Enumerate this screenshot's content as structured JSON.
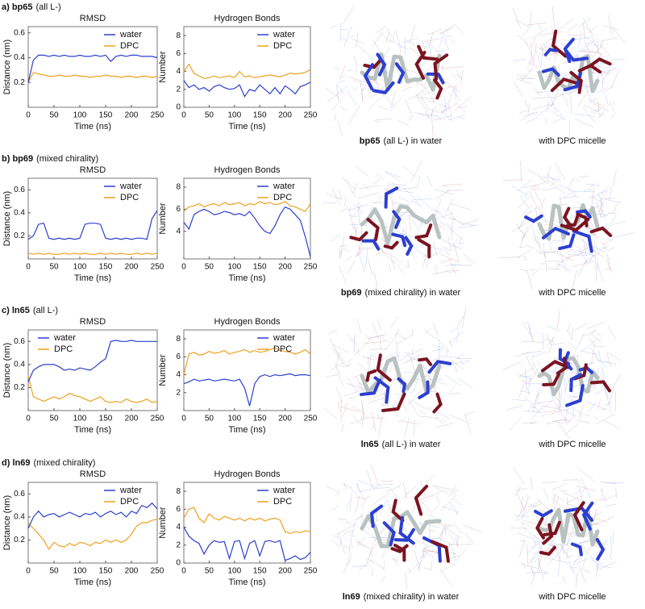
{
  "panels": [
    {
      "label": "a) bp65",
      "label_note": "(all L-)",
      "caption_name": "bp65",
      "caption_rest": "(all L-)  in water",
      "caption_micelle": "with DPC micelle"
    },
    {
      "label": "b) bp69",
      "label_note": "(mixed chirality)",
      "caption_name": "bp69",
      "caption_rest": "(mixed chirality) in water",
      "caption_micelle": "with DPC micelle"
    },
    {
      "label": "c) ln65",
      "label_note": "(all L-)",
      "caption_name": "ln65",
      "caption_rest": "(all L-) in water",
      "caption_micelle": "with DPC micelle"
    },
    {
      "label": "d) ln69",
      "label_note": "(mixed chirality)",
      "caption_name": "ln69",
      "caption_rest": "(mixed chirality) in water",
      "caption_micelle": "with DPC micelle"
    }
  ],
  "chart_data": [
    {
      "type": "line",
      "title": "RMSD",
      "x_label": "Time (ns)",
      "y_label": "Distance (nm)",
      "x": [
        0,
        10,
        20,
        30,
        40,
        50,
        60,
        70,
        80,
        90,
        100,
        110,
        120,
        130,
        140,
        150,
        160,
        170,
        180,
        190,
        200,
        210,
        220,
        230,
        240,
        250
      ],
      "xlim": [
        0,
        250
      ],
      "xticks": [
        0,
        50,
        100,
        150,
        200,
        250
      ],
      "ylim": [
        0,
        0.65
      ],
      "yticks": [
        0.2,
        0.4,
        0.6
      ],
      "legend": "upper right",
      "series": [
        {
          "name": "water",
          "color": "#2b3fd0",
          "values": [
            0.2,
            0.38,
            0.42,
            0.42,
            0.41,
            0.42,
            0.41,
            0.42,
            0.41,
            0.41,
            0.42,
            0.41,
            0.41,
            0.42,
            0.41,
            0.42,
            0.37,
            0.41,
            0.42,
            0.41,
            0.42,
            0.42,
            0.41,
            0.41,
            0.41,
            0.4
          ]
        },
        {
          "name": "DPC",
          "color": "#f0a020",
          "values": [
            0.2,
            0.28,
            0.27,
            0.26,
            0.25,
            0.25,
            0.26,
            0.25,
            0.25,
            0.26,
            0.25,
            0.25,
            0.24,
            0.25,
            0.25,
            0.26,
            0.25,
            0.25,
            0.24,
            0.25,
            0.25,
            0.24,
            0.25,
            0.25,
            0.24,
            0.25
          ]
        }
      ]
    },
    {
      "type": "line",
      "title": "Hydrogen Bonds",
      "x_label": "Time (ns)",
      "y_label": "Number",
      "x": [
        0,
        10,
        20,
        30,
        40,
        50,
        60,
        70,
        80,
        90,
        100,
        110,
        120,
        130,
        140,
        150,
        160,
        170,
        180,
        190,
        200,
        210,
        220,
        230,
        240,
        250
      ],
      "xlim": [
        0,
        250
      ],
      "xticks": [
        0,
        50,
        100,
        150,
        200,
        250
      ],
      "ylim": [
        0,
        9
      ],
      "yticks": [
        0,
        2,
        4,
        6,
        8
      ],
      "legend": "upper right",
      "series": [
        {
          "name": "water",
          "color": "#2b3fd0",
          "values": [
            3,
            2.2,
            2.5,
            2,
            2.2,
            1.8,
            2.3,
            2.5,
            2.2,
            2,
            2.1,
            2.5,
            1.2,
            2,
            1.8,
            2.5,
            2,
            1.5,
            2.2,
            1.5,
            2.4,
            2,
            1.5,
            2.3,
            2.5,
            2.8
          ]
        },
        {
          "name": "DPC",
          "color": "#f0a020",
          "values": [
            4,
            4.8,
            3.8,
            3.5,
            3.2,
            3.3,
            3.5,
            3.3,
            3.4,
            3.5,
            3.3,
            4,
            3.4,
            3.5,
            3.3,
            3.4,
            3.5,
            3.6,
            3.5,
            3.4,
            3.6,
            3.8,
            3.7,
            3.8,
            3.9,
            4.2
          ]
        }
      ]
    },
    {
      "type": "line",
      "title": "RMSD",
      "x_label": "Time (ns)",
      "y_label": "Distance (nm)",
      "x": [
        0,
        10,
        20,
        30,
        40,
        50,
        60,
        70,
        80,
        90,
        100,
        110,
        120,
        130,
        140,
        150,
        160,
        170,
        180,
        190,
        200,
        210,
        220,
        230,
        240,
        250
      ],
      "xlim": [
        0,
        250
      ],
      "xticks": [
        0,
        50,
        100,
        150,
        200,
        250
      ],
      "ylim": [
        0,
        0.7
      ],
      "yticks": [
        0.2,
        0.4,
        0.6
      ],
      "legend": "upper right",
      "series": [
        {
          "name": "water",
          "color": "#2b3fd0",
          "values": [
            0.17,
            0.2,
            0.3,
            0.31,
            0.18,
            0.17,
            0.18,
            0.17,
            0.18,
            0.17,
            0.18,
            0.3,
            0.31,
            0.31,
            0.3,
            0.18,
            0.17,
            0.18,
            0.17,
            0.18,
            0.17,
            0.18,
            0.18,
            0.17,
            0.35,
            0.42
          ]
        },
        {
          "name": "DPC",
          "color": "#f0a020",
          "values": [
            0.05,
            0.04,
            0.05,
            0.04,
            0.05,
            0.04,
            0.04,
            0.05,
            0.04,
            0.05,
            0.04,
            0.05,
            0.04,
            0.04,
            0.05,
            0.04,
            0.05,
            0.04,
            0.05,
            0.04,
            0.04,
            0.05,
            0.04,
            0.05,
            0.04,
            0.05
          ]
        }
      ]
    },
    {
      "type": "line",
      "title": "Hydrogen Bonds",
      "x_label": "Time (ns)",
      "y_label": "Number",
      "x": [
        0,
        10,
        20,
        30,
        40,
        50,
        60,
        70,
        80,
        90,
        100,
        110,
        120,
        130,
        140,
        150,
        160,
        170,
        180,
        190,
        200,
        210,
        220,
        230,
        240,
        250
      ],
      "xlim": [
        0,
        250
      ],
      "xticks": [
        0,
        50,
        100,
        150,
        200,
        250
      ],
      "ylim": [
        1.5,
        8.8
      ],
      "yticks": [
        4,
        6,
        8
      ],
      "legend": "upper right",
      "series": [
        {
          "name": "water",
          "color": "#2b3fd0",
          "values": [
            4.8,
            4.2,
            5.5,
            5.8,
            6,
            5.8,
            5.5,
            5.6,
            5.8,
            5.7,
            5.5,
            5.6,
            5.4,
            5.8,
            5.2,
            4.5,
            4,
            3.8,
            4.5,
            5.5,
            6.2,
            6,
            5.5,
            5,
            3.5,
            1.7
          ]
        },
        {
          "name": "DPC",
          "color": "#f0a020",
          "values": [
            5.8,
            6.2,
            6.3,
            6.5,
            6.2,
            6.4,
            6.5,
            6.3,
            6.6,
            6.4,
            6.5,
            6.6,
            6.3,
            6.5,
            6.4,
            6.7,
            6.5,
            6.6,
            6.4,
            6.5,
            6.7,
            6.3,
            6.2,
            6,
            5.8,
            6.5
          ]
        }
      ]
    },
    {
      "type": "line",
      "title": "RMSD",
      "x_label": "Time (ns)",
      "y_label": "Distance (nm)",
      "x": [
        0,
        10,
        20,
        30,
        40,
        50,
        60,
        70,
        80,
        90,
        100,
        110,
        120,
        130,
        140,
        150,
        160,
        170,
        180,
        190,
        200,
        210,
        220,
        230,
        240,
        250
      ],
      "xlim": [
        0,
        250
      ],
      "xticks": [
        0,
        50,
        100,
        150,
        200,
        250
      ],
      "ylim": [
        0,
        0.7
      ],
      "yticks": [
        0.2,
        0.4,
        0.6
      ],
      "legend": "upper left",
      "series": [
        {
          "name": "water",
          "color": "#2b3fd0",
          "values": [
            0.25,
            0.35,
            0.38,
            0.4,
            0.4,
            0.4,
            0.38,
            0.35,
            0.36,
            0.35,
            0.37,
            0.36,
            0.35,
            0.38,
            0.42,
            0.45,
            0.6,
            0.61,
            0.6,
            0.6,
            0.61,
            0.6,
            0.6,
            0.6,
            0.6,
            0.6
          ]
        },
        {
          "name": "DPC",
          "color": "#f0a020",
          "values": [
            0.3,
            0.12,
            0.1,
            0.08,
            0.1,
            0.12,
            0.1,
            0.12,
            0.15,
            0.13,
            0.12,
            0.1,
            0.08,
            0.1,
            0.12,
            0.08,
            0.07,
            0.08,
            0.07,
            0.1,
            0.08,
            0.07,
            0.08,
            0.1,
            0.07,
            0.08
          ]
        }
      ]
    },
    {
      "type": "line",
      "title": "Hydrogen Bonds",
      "x_label": "Time (ns)",
      "y_label": "Number",
      "x": [
        0,
        10,
        20,
        30,
        40,
        50,
        60,
        70,
        80,
        90,
        100,
        110,
        120,
        130,
        140,
        150,
        160,
        170,
        180,
        190,
        200,
        210,
        220,
        230,
        240,
        250
      ],
      "xlim": [
        0,
        250
      ],
      "xticks": [
        0,
        50,
        100,
        150,
        200,
        250
      ],
      "ylim": [
        0,
        9
      ],
      "yticks": [
        2,
        4,
        6,
        8
      ],
      "legend": "upper right",
      "series": [
        {
          "name": "water",
          "color": "#2b3fd0",
          "values": [
            3,
            3.2,
            3.5,
            3.3,
            3.4,
            3.5,
            3.3,
            3.4,
            3.5,
            3.4,
            3.3,
            3.5,
            2.5,
            0.5,
            3,
            3.8,
            4,
            3.8,
            4,
            3.9,
            4,
            4.1,
            3.9,
            4,
            4,
            3.9
          ]
        },
        {
          "name": "DPC",
          "color": "#f0a020",
          "values": [
            4,
            6.3,
            6.5,
            6.2,
            6.3,
            6.6,
            6.4,
            6.5,
            6.7,
            6.3,
            6.5,
            6.6,
            6.8,
            6.5,
            6.7,
            6.5,
            6.6,
            6.8,
            7,
            6.7,
            6.6,
            6.5,
            6.3,
            6.5,
            6.8,
            6.3
          ]
        }
      ]
    },
    {
      "type": "line",
      "title": "RMSD",
      "x_label": "Time (ns)",
      "y_label": "Distance (nm)",
      "x": [
        0,
        10,
        20,
        30,
        40,
        50,
        60,
        70,
        80,
        90,
        100,
        110,
        120,
        130,
        140,
        150,
        160,
        170,
        180,
        190,
        200,
        210,
        220,
        230,
        240,
        250
      ],
      "xlim": [
        0,
        250
      ],
      "xticks": [
        0,
        50,
        100,
        150,
        200,
        250
      ],
      "ylim": [
        0,
        0.7
      ],
      "yticks": [
        0.2,
        0.4,
        0.6
      ],
      "legend": "upper right",
      "series": [
        {
          "name": "water",
          "color": "#2b3fd0",
          "values": [
            0.3,
            0.4,
            0.45,
            0.4,
            0.42,
            0.43,
            0.4,
            0.42,
            0.44,
            0.42,
            0.4,
            0.43,
            0.42,
            0.44,
            0.4,
            0.43,
            0.45,
            0.42,
            0.44,
            0.4,
            0.45,
            0.43,
            0.5,
            0.48,
            0.52,
            0.47
          ]
        },
        {
          "name": "DPC",
          "color": "#f0a020",
          "values": [
            0.35,
            0.3,
            0.25,
            0.2,
            0.12,
            0.18,
            0.15,
            0.14,
            0.17,
            0.15,
            0.18,
            0.17,
            0.15,
            0.18,
            0.17,
            0.2,
            0.18,
            0.2,
            0.18,
            0.2,
            0.25,
            0.32,
            0.35,
            0.35,
            0.37,
            0.38
          ]
        }
      ]
    },
    {
      "type": "line",
      "title": "Hydrogen Bonds",
      "x_label": "Time (ns)",
      "y_label": "Number",
      "x": [
        0,
        10,
        20,
        30,
        40,
        50,
        60,
        70,
        80,
        90,
        100,
        110,
        120,
        130,
        140,
        150,
        160,
        170,
        180,
        190,
        200,
        210,
        220,
        230,
        240,
        250
      ],
      "xlim": [
        0,
        250
      ],
      "xticks": [
        0,
        50,
        100,
        150,
        200,
        250
      ],
      "ylim": [
        0,
        9
      ],
      "yticks": [
        0,
        2,
        4,
        6,
        8
      ],
      "legend": "upper right",
      "series": [
        {
          "name": "water",
          "color": "#2b3fd0",
          "values": [
            4,
            3,
            2.5,
            2.2,
            1,
            2,
            2.5,
            2.3,
            2.4,
            0.5,
            2.4,
            2.5,
            0.5,
            2.2,
            2.5,
            0.8,
            2.4,
            2.5,
            2.3,
            2.5,
            0.3,
            0.5,
            0.8,
            0.4,
            0.6,
            1.2
          ]
        },
        {
          "name": "DPC",
          "color": "#f0a020",
          "values": [
            5,
            6,
            6.2,
            5,
            4.5,
            5.5,
            5,
            4.8,
            5.2,
            5,
            4.8,
            5,
            4.7,
            5,
            4.8,
            5,
            4.7,
            4.9,
            5,
            4.8,
            3.5,
            3.3,
            3.5,
            3.4,
            3.6,
            3.5
          ]
        }
      ]
    }
  ]
}
